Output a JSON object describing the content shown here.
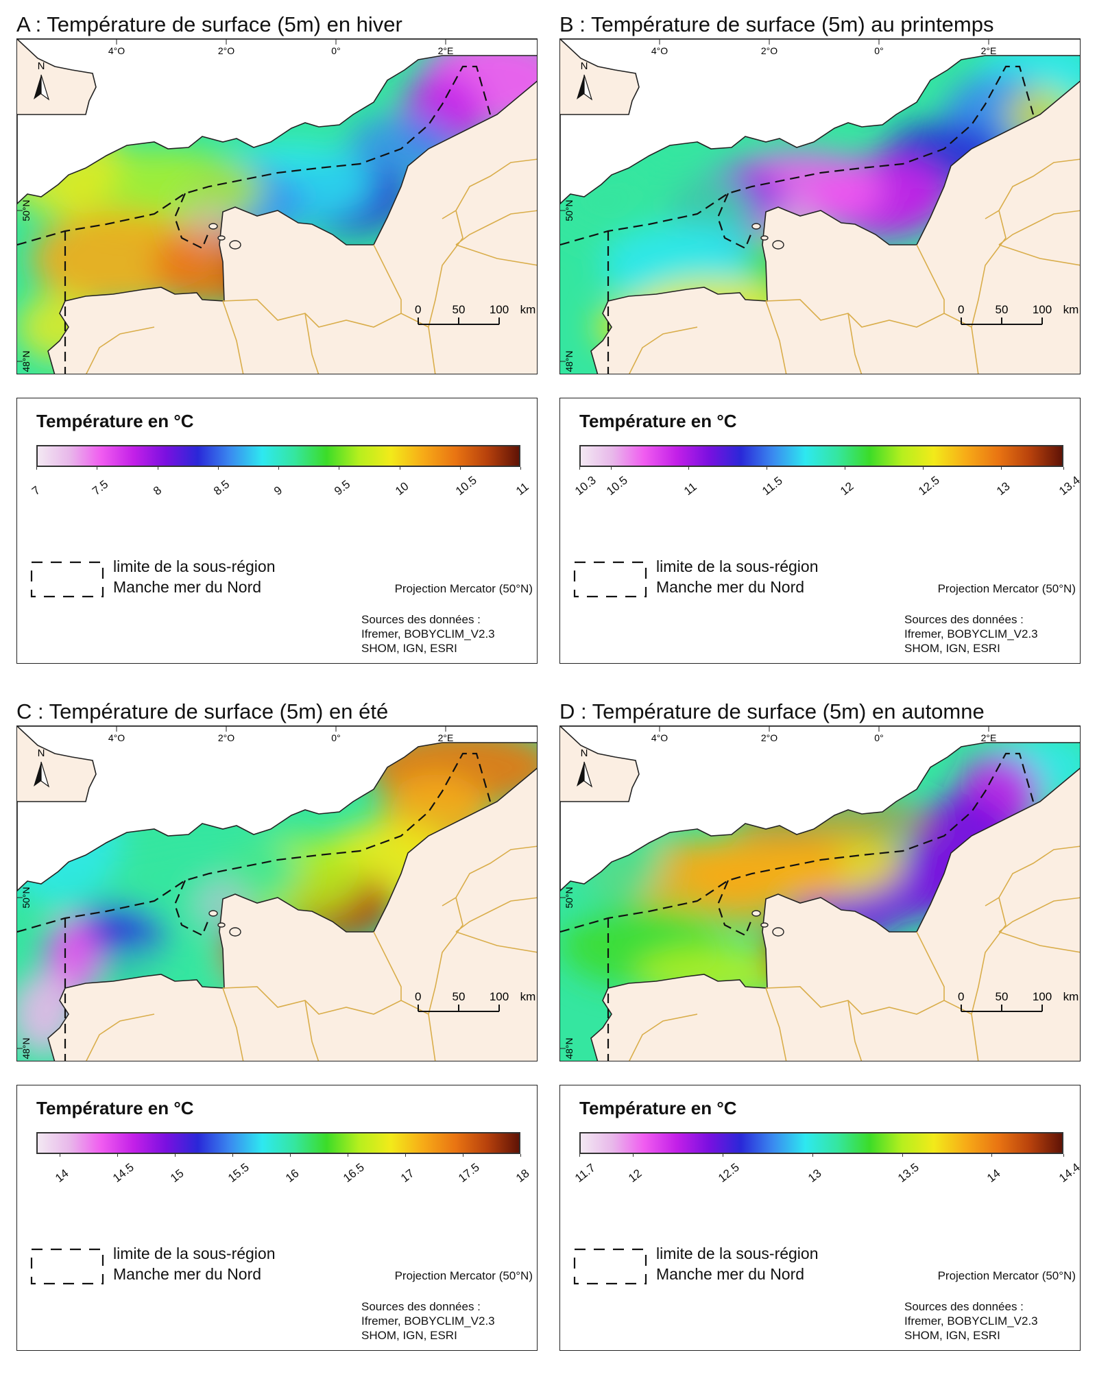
{
  "panels": [
    {
      "title": "A : Température de surface (5m) en hiver",
      "legend_title": "Température en °C",
      "ticks": [
        "7",
        "7.5",
        "8",
        "8.5",
        "9",
        "9.5",
        "10",
        "10.5",
        "11"
      ],
      "ramp_min": 7,
      "ramp_max": 11,
      "scheme": "winter"
    },
    {
      "title": "B : Température de surface (5m) au printemps",
      "legend_title": "Température en °C",
      "ticks": [
        "10.3",
        "10.5",
        "11",
        "11.5",
        "12",
        "12.5",
        "13",
        "13.4"
      ],
      "ramp_min": 10.3,
      "ramp_max": 13.4,
      "scheme": "spring"
    },
    {
      "title": "C : Température de surface (5m) en été",
      "legend_title": "Température en °C",
      "ticks": [
        "14",
        "14.5",
        "15",
        "15.5",
        "16",
        "16.5",
        "17",
        "17.5",
        "18"
      ],
      "ramp_min": 13.8,
      "ramp_max": 18,
      "scheme": "summer"
    },
    {
      "title": "D : Température de surface (5m) en automne",
      "legend_title": "Température en °C",
      "ticks": [
        "11.7",
        "12",
        "12.5",
        "13",
        "13.5",
        "14",
        "14.4"
      ],
      "ramp_min": 11.7,
      "ramp_max": 14.4,
      "scheme": "autumn"
    }
  ],
  "map_labels": {
    "north": "N",
    "lon_labels": [
      "4°O",
      "2°O",
      "0°",
      "2°E"
    ],
    "lat_labels": [
      "50°N",
      "48°N"
    ],
    "scale_labels": [
      "0",
      "50",
      "100",
      "km"
    ]
  },
  "legend_common": {
    "boundary_line1": "limite de la sous-région",
    "boundary_line2": "Manche mer du Nord",
    "projection": "Projection Mercator (50°N)",
    "sources_line1": "Sources des données :",
    "sources_line2": "Ifremer, BOBYCLIM_V2.3",
    "sources_line3": "SHOM, IGN, ESRI"
  },
  "colors": {
    "land": "#fbeee2",
    "uk_land": "#ffffff",
    "boundary": "#d9ad4a",
    "ramp": [
      "#f3eaf3",
      "#e8b8ea",
      "#f05cf0",
      "#c320e8",
      "#7a10e0",
      "#2a28d8",
      "#3a8af0",
      "#2ee8f0",
      "#35e6a0",
      "#3cdc28",
      "#b6ef1e",
      "#f2ea1a",
      "#f7ab17",
      "#e97412",
      "#b7410c",
      "#5e1206"
    ]
  }
}
